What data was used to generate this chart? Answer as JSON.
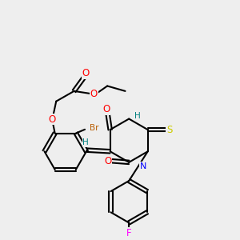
{
  "bg_color": "#eeeeee",
  "bond_color": "#000000",
  "bond_width": 1.5,
  "atom_colors": {
    "O": "#ff0000",
    "N": "#0000ff",
    "S": "#cccc00",
    "F": "#ff00ff",
    "Br": "#b85c00",
    "H_label": "#008080",
    "C": "#000000"
  },
  "font_size": 7.5
}
